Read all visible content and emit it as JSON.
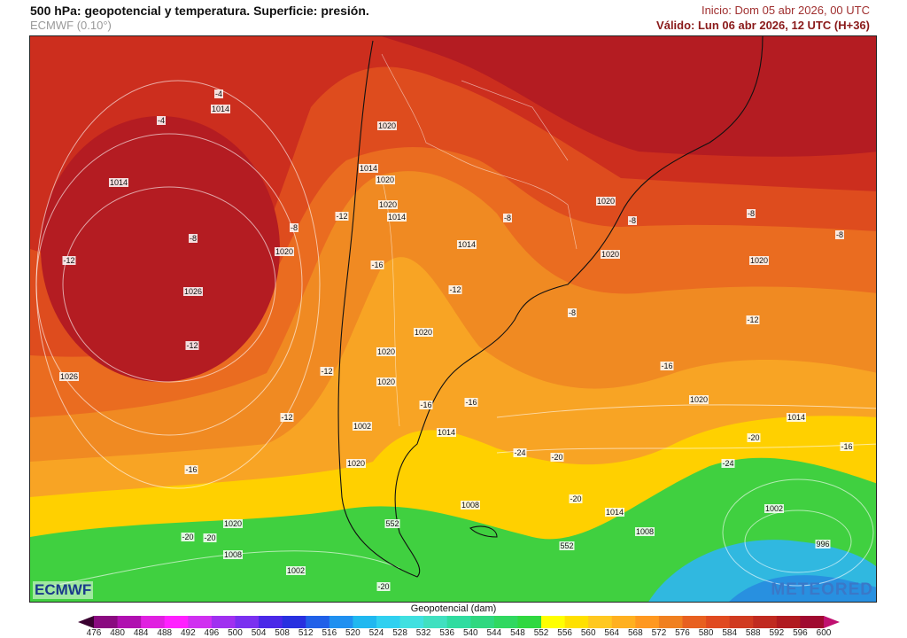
{
  "header": {
    "title": "500 hPa: geopotencial y temperatura. Superficie: presión.",
    "model": "ECMWF (0.10°)",
    "init": "Inicio: Dom 05 abr 2026, 00 UTC",
    "valid": "Válido: Lun 06 abr 2026, 12 UTC (H+36)"
  },
  "map": {
    "labels": [
      "-4",
      "-4",
      "1014",
      "1020",
      "1014",
      "1020",
      "1020",
      "1014",
      "1014",
      "-8",
      "1020",
      "-8",
      "1020",
      "-8",
      "-12",
      "-8",
      "-8",
      "-8",
      "1020",
      "1014",
      "-12",
      "-16",
      "1020",
      "-12",
      "-8",
      "1026",
      "-12",
      "1020",
      "-12",
      "1020",
      "-12",
      "-16",
      "1026",
      "-12",
      "1020",
      "-16",
      "-16",
      "1020",
      "1014",
      "1014",
      "-20",
      "-16",
      "-16",
      "1020",
      "-20",
      "552",
      "-24",
      "1008",
      "-20",
      "1002",
      "1020",
      "-20",
      "1008",
      "552",
      "-24",
      "1014",
      "1002",
      "996",
      "1008",
      "-20",
      "1002",
      "-20"
    ],
    "logos": {
      "left": "ECMWF",
      "right": "METEORED"
    }
  },
  "colorbar": {
    "title": "Geopotencial (dam)",
    "ticks": [
      "476",
      "480",
      "484",
      "488",
      "492",
      "496",
      "500",
      "504",
      "508",
      "512",
      "516",
      "520",
      "524",
      "528",
      "532",
      "536",
      "540",
      "544",
      "548",
      "552",
      "556",
      "560",
      "564",
      "568",
      "572",
      "576",
      "580",
      "584",
      "588",
      "592",
      "596",
      "600"
    ],
    "colors": [
      "#8a0a80",
      "#b010b0",
      "#e020e0",
      "#ff20ff",
      "#d030f0",
      "#a030f0",
      "#7a30f0",
      "#4a28e8",
      "#2830e0",
      "#2060e8",
      "#2090f0",
      "#20b8f0",
      "#30d0f0",
      "#40e0e0",
      "#40e0c0",
      "#30dca0",
      "#30d880",
      "#30d860",
      "#30d840",
      "#ffff00",
      "#ffe000",
      "#ffc820",
      "#ffb020",
      "#ff9820",
      "#f08020",
      "#e86020",
      "#e04a20",
      "#d03a20",
      "#c02a20",
      "#b01a20",
      "#a00a30"
    ],
    "under_color": "#3a0030",
    "over_color": "#c01070"
  }
}
